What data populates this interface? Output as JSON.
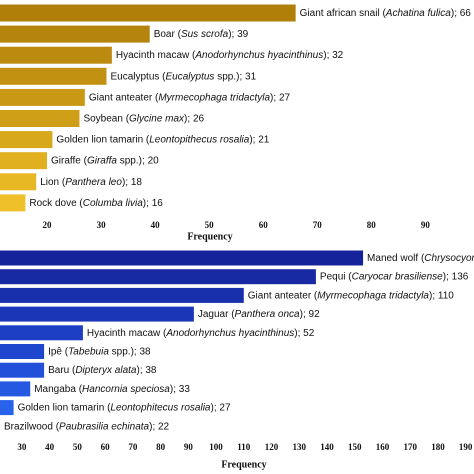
{
  "chart_data": [
    {
      "type": "bar",
      "orientation": "horizontal",
      "x_label": "Frequency",
      "separator": "; ",
      "categories": [
        "Giant african snail (Achatina fulica)",
        "Boar (Sus scrofa)",
        "Hyacinth macaw (Anodorhynchus hyacinthinus)",
        "Eucalyptus (Eucalyptus spp.)",
        "Giant anteater (Myrmecophaga tridactyla)",
        "Soybean (Glycine max)",
        "Golden lion tamarin (Leontopithecus rosalia)",
        "Giraffe (Giraffa spp.)",
        "Lion (Panthera leo)",
        "Rock dove (Columba livia)"
      ],
      "values": [
        66,
        39,
        32,
        31,
        27,
        26,
        21,
        20,
        18,
        16
      ],
      "value_labels": [
        "66",
        "39",
        "32",
        "31",
        "27",
        "26",
        "21",
        "20",
        "18",
        "16"
      ],
      "colors": [
        "#b07f0a",
        "#b5840c",
        "#bb8a0f",
        "#c29112",
        "#c99815",
        "#d09f18",
        "#d8a81c",
        "#e0b020",
        "#e8b824",
        "#f0c02a"
      ],
      "xlim": [
        11.3,
        99
      ],
      "xticks": [
        20,
        30,
        40,
        50,
        60,
        70,
        80,
        90
      ]
    },
    {
      "type": "bar",
      "orientation": "horizontal",
      "x_label": "Frequency",
      "separator": "; ",
      "categories": [
        "Maned wolf (Chrysocyon",
        "Pequi (Caryocar brasiliense)",
        "Giant anteater (Myrmecophaga tridactyla)",
        "Jaguar (Panthera onca)",
        "Hyacinth macaw (Anodorhynchus hyacinthinus)",
        "Ipê (Tabebuia spp.)",
        "Baru (Dipteryx alata)",
        "Mangaba (Hancornia speciosa)",
        "Golden lion tamarin (Leontophitecus rosalia)",
        "Brazilwood (Paubrasilia echinata)"
      ],
      "values": [
        153,
        136,
        110,
        92,
        52,
        38,
        38,
        33,
        27,
        22
      ],
      "value_labels": [
        null,
        "136",
        "110",
        "92",
        "52",
        "38",
        "38",
        "33",
        "27",
        "22"
      ],
      "colors": [
        "#15239a",
        "#1729a3",
        "#1930ad",
        "#1b37b8",
        "#1d3fc3",
        "#1f47cd",
        "#2250d8",
        "#2559e2",
        "#2862eb",
        "#2c6bf2"
      ],
      "xlim": [
        22.1,
        193
      ],
      "xticks": [
        30,
        40,
        50,
        60,
        70,
        80,
        90,
        100,
        110,
        120,
        130,
        140,
        150,
        160,
        170,
        180,
        190
      ]
    }
  ]
}
